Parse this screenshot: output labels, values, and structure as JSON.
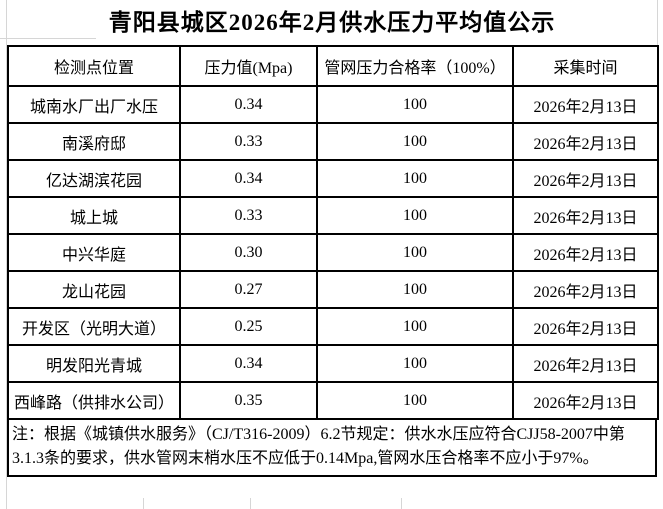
{
  "title": "青阳县城区2026年2月供水压力平均值公示",
  "table": {
    "headers": [
      "检测点位置",
      "压力值(Mpa)",
      "管网压力合格率（100%）",
      "采集时间"
    ],
    "rows": [
      [
        "城南水厂出厂水压",
        "0.34",
        "100",
        "2026年2月13日"
      ],
      [
        "南溪府邸",
        "0.33",
        "100",
        "2026年2月13日"
      ],
      [
        "亿达湖滨花园",
        "0.34",
        "100",
        "2026年2月13日"
      ],
      [
        "城上城",
        "0.33",
        "100",
        "2026年2月13日"
      ],
      [
        "中兴华庭",
        "0.30",
        "100",
        "2026年2月13日"
      ],
      [
        "龙山花园",
        "0.27",
        "100",
        "2026年2月13日"
      ],
      [
        "开发区（光明大道）",
        "0.25",
        "100",
        "2026年2月13日"
      ],
      [
        "明发阳光青城",
        "0.34",
        "100",
        "2026年2月13日"
      ],
      [
        "西峰路（供排水公司）",
        "0.35",
        "100",
        "2026年2月13日"
      ]
    ]
  },
  "note_lines": [
    "注：根据《城镇供水服务》（CJ/T316-2009）6.2节规定：供水水压应符合CJJ58-2007中第",
    "3.1.3条的要求，供水管网末梢水压不应低于0.14Mpa,管网水压合格率不应小于97%。"
  ],
  "colors": {
    "border": "#000000",
    "gridline": "#d6d6d6",
    "background": "#ffffff",
    "text": "#000000"
  }
}
